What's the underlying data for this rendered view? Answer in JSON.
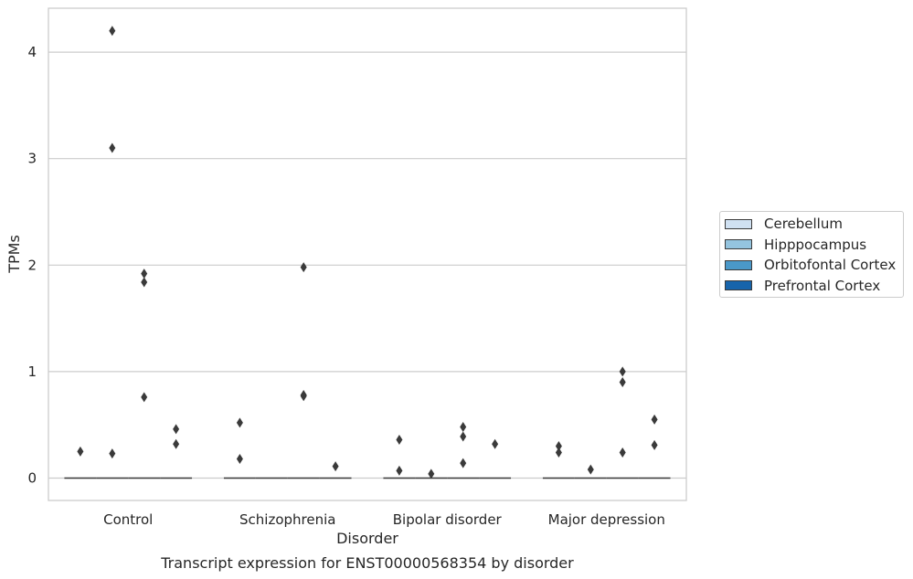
{
  "chart_data": {
    "type": "box",
    "title": "Transcript expression for ENST00000568354 by disorder",
    "xlabel": "Disorder",
    "ylabel": "TPMs",
    "categories": [
      "Control",
      "Schizophrenia",
      "Bipolar disorder",
      "Major depression"
    ],
    "ylim": [
      -0.2,
      4.4
    ],
    "yticks": [
      0,
      1,
      2,
      3,
      4
    ],
    "grid": "horizontal",
    "legend_position": "right",
    "series": [
      {
        "name": "Cerebellum",
        "color": "#d0e1f2"
      },
      {
        "name": "Hipppocampus",
        "color": "#94c4df"
      },
      {
        "name": "Orbitofontal Cortex",
        "color": "#4a98c9"
      },
      {
        "name": "Prefrontal Cortex",
        "color": "#1764ab"
      }
    ],
    "medians": [
      {
        "category": "Control",
        "value": 0
      },
      {
        "category": "Schizophrenia",
        "value": 0
      },
      {
        "category": "Bipolar disorder",
        "value": 0
      },
      {
        "category": "Major depression",
        "value": 0
      }
    ],
    "outliers": [
      {
        "category": "Control",
        "series": "Cerebellum",
        "values": [
          0.25
        ]
      },
      {
        "category": "Control",
        "series": "Hipppocampus",
        "values": [
          4.2,
          3.1,
          0.23
        ]
      },
      {
        "category": "Control",
        "series": "Orbitofontal Cortex",
        "values": [
          1.92,
          1.84,
          0.76
        ]
      },
      {
        "category": "Control",
        "series": "Prefrontal Cortex",
        "values": [
          0.46,
          0.32
        ]
      },
      {
        "category": "Schizophrenia",
        "series": "Cerebellum",
        "values": [
          0.52,
          0.18
        ]
      },
      {
        "category": "Schizophrenia",
        "series": "Orbitofontal Cortex",
        "values": [
          1.98,
          0.78,
          0.77
        ]
      },
      {
        "category": "Schizophrenia",
        "series": "Prefrontal Cortex",
        "values": [
          0.11
        ]
      },
      {
        "category": "Bipolar disorder",
        "series": "Cerebellum",
        "values": [
          0.36,
          0.07
        ]
      },
      {
        "category": "Bipolar disorder",
        "series": "Hipppocampus",
        "values": [
          0.04
        ]
      },
      {
        "category": "Bipolar disorder",
        "series": "Orbitofontal Cortex",
        "values": [
          0.48,
          0.39,
          0.14
        ]
      },
      {
        "category": "Bipolar disorder",
        "series": "Prefrontal Cortex",
        "values": [
          0.32
        ]
      },
      {
        "category": "Major depression",
        "series": "Cerebellum",
        "values": [
          0.3,
          0.24
        ]
      },
      {
        "category": "Major depression",
        "series": "Hipppocampus",
        "values": [
          0.08
        ]
      },
      {
        "category": "Major depression",
        "series": "Orbitofontal Cortex",
        "values": [
          1.0,
          0.9,
          0.24
        ]
      },
      {
        "category": "Major depression",
        "series": "Prefrontal Cortex",
        "values": [
          0.55,
          0.31
        ]
      }
    ]
  }
}
